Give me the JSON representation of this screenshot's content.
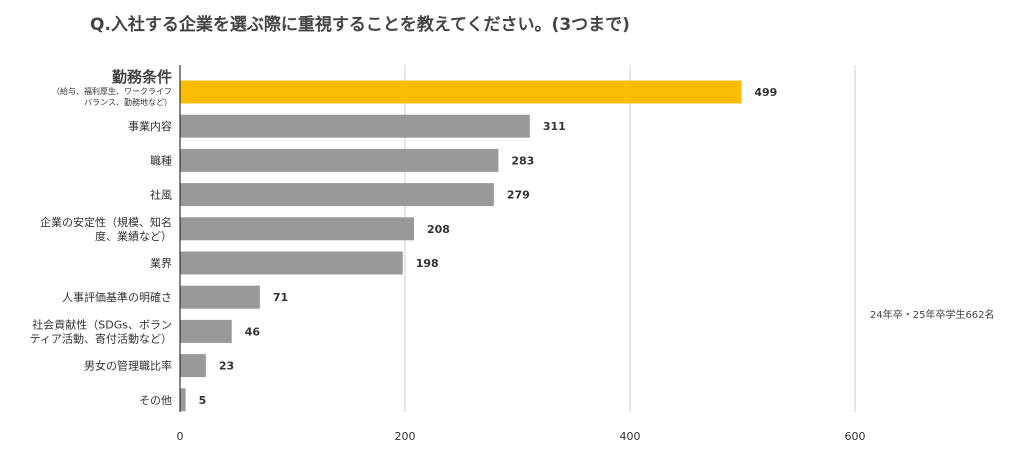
{
  "chart_data": {
    "type": "bar",
    "orientation": "horizontal",
    "title": "Q.入社する企業を選ぶ際に重視することを教えてください。(3つまで)",
    "note": "24年卒・25年卒学生662名",
    "categories": [
      {
        "lines": [
          "勤務条件"
        ],
        "sublines": [
          "（給与、福利厚生、ワークライフ",
          "バランス、勤務地など）"
        ]
      },
      {
        "lines": [
          "事業内容"
        ]
      },
      {
        "lines": [
          "職種"
        ]
      },
      {
        "lines": [
          "社風"
        ]
      },
      {
        "lines": [
          "企業の安定性（規模、知名",
          "度、業績など）"
        ]
      },
      {
        "lines": [
          "業界"
        ]
      },
      {
        "lines": [
          "人事評価基準の明確さ"
        ]
      },
      {
        "lines": [
          "社会貢献性（SDGs、ボラン",
          "ティア活動、寄付活動など）"
        ]
      },
      {
        "lines": [
          "男女の管理職比率"
        ]
      },
      {
        "lines": [
          "その他"
        ]
      }
    ],
    "values": [
      499,
      311,
      283,
      279,
      208,
      198,
      71,
      46,
      23,
      5
    ],
    "highlight_index": 0,
    "colors": {
      "highlight": "#FBBC04",
      "bar": "#999999",
      "grid": "#cccccc",
      "axis": "#333333"
    },
    "xlim": [
      0,
      700
    ],
    "xticks": [
      0,
      200,
      400,
      600
    ],
    "grid": true
  }
}
